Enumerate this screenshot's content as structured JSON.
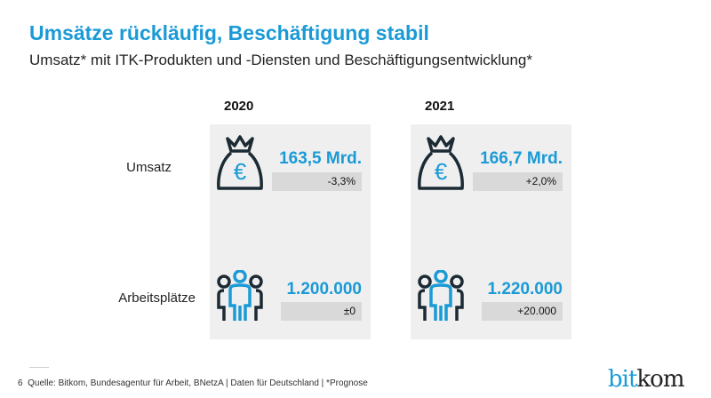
{
  "title": "Umsätze rückläufig, Beschäftigung stabil",
  "subtitle": "Umsatz* mit ITK-Produkten und -Diensten und Beschäftigungsentwicklung*",
  "rows": [
    "Umsatz",
    "Arbeitsplätze"
  ],
  "columns": [
    {
      "year": "2020",
      "revenue": "163,5 Mrd.",
      "revenue_change": "-3,3%",
      "jobs": "1.200.000",
      "jobs_change": "±0"
    },
    {
      "year": "2021",
      "revenue": "166,7 Mrd.",
      "revenue_change": "+2,0%",
      "jobs": "1.220.000",
      "jobs_change": "+20.000"
    }
  ],
  "footer": {
    "page": "6",
    "source": "Quelle: Bitkom, Bundesagentur für Arbeit, BNetzA | Daten für Deutschland | *Prognose"
  },
  "logo": {
    "part1": "bit",
    "part2": "kom"
  },
  "icons": {
    "revenue": "money-bag-euro-icon",
    "jobs": "people-group-icon"
  },
  "colors": {
    "accent": "#1a9ad6",
    "panel": "#efefef",
    "bar": "#d9d9d9"
  }
}
